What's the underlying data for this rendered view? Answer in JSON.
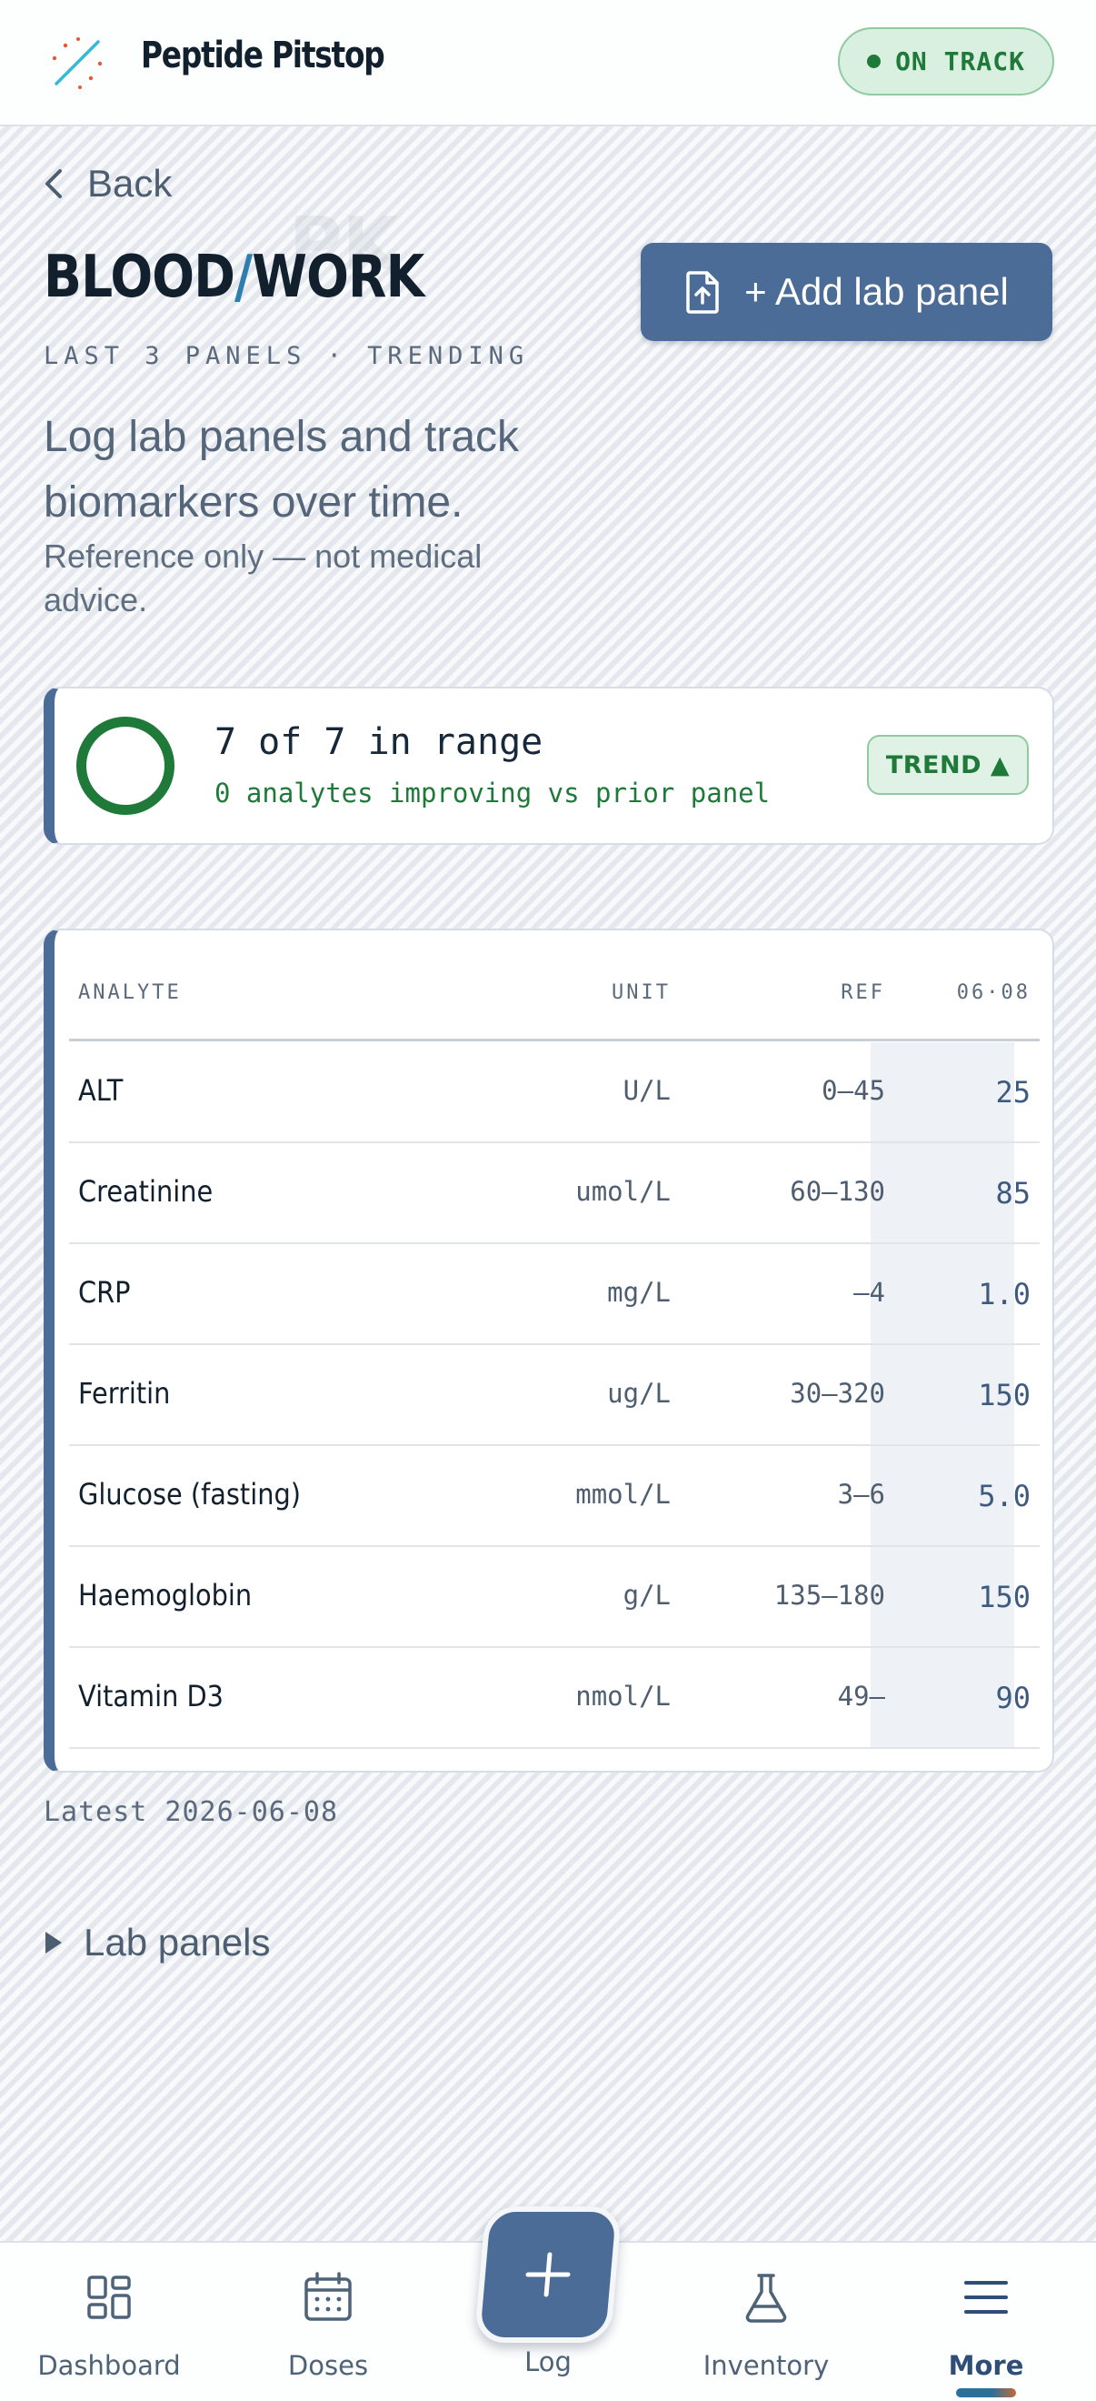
{
  "header": {
    "brand": "Peptide Pitstop",
    "logo_icon": "sparkle-slash-logo-icon",
    "status": "ON TRACK",
    "status_color": "#1f7a3a"
  },
  "back": {
    "label": "Back",
    "icon": "chevron-left-icon"
  },
  "title": {
    "part1": "BLOOD",
    "slash": "/",
    "part2": "WORK",
    "watermark": "PK"
  },
  "subtitle": "LAST 3 PANELS · TRENDING",
  "add_button": {
    "label": "+ Add lab panel",
    "icon": "file-upload-icon"
  },
  "lead": "Log lab panels and track biomarkers over time.",
  "disclaimer": "Reference only — not medical advice.",
  "summary": {
    "title": "7 of 7 in range",
    "subtitle": "0 analytes improving vs prior panel",
    "badge": "TREND ▲",
    "in_range": 7,
    "total": 7
  },
  "table": {
    "headers": {
      "analyte": "ANALYTE",
      "unit": "UNIT",
      "ref": "REF",
      "date": "06·08"
    },
    "rows": [
      {
        "name": "ALT",
        "unit": "U/L",
        "ref": "0–45",
        "value": "25"
      },
      {
        "name": "Creatinine",
        "unit": "umol/L",
        "ref": "60–130",
        "value": "85"
      },
      {
        "name": "CRP",
        "unit": "mg/L",
        "ref": "–4",
        "value": "1.0"
      },
      {
        "name": "Ferritin",
        "unit": "ug/L",
        "ref": "30–320",
        "value": "150"
      },
      {
        "name": "Glucose (fasting)",
        "unit": "mmol/L",
        "ref": "3–6",
        "value": "5.0"
      },
      {
        "name": "Haemoglobin",
        "unit": "g/L",
        "ref": "135–180",
        "value": "150"
      },
      {
        "name": "Vitamin D3",
        "unit": "nmol/L",
        "ref": "49–",
        "value": "90"
      }
    ]
  },
  "latest": "Latest 2026-06-08",
  "lab_panels": {
    "label": "Lab panels",
    "icon": "triangle-right-icon"
  },
  "nav": {
    "items": [
      {
        "label": "Dashboard",
        "icon": "dashboard-grid-icon"
      },
      {
        "label": "Doses",
        "icon": "calendar-icon"
      },
      {
        "label": "Log",
        "icon": "plus-icon"
      },
      {
        "label": "Inventory",
        "icon": "flask-icon"
      },
      {
        "label": "More",
        "icon": "menu-icon",
        "active": true
      }
    ]
  },
  "colors": {
    "accent": "#4a6c96",
    "success": "#1f7a3a",
    "background": "#eef1f5"
  }
}
